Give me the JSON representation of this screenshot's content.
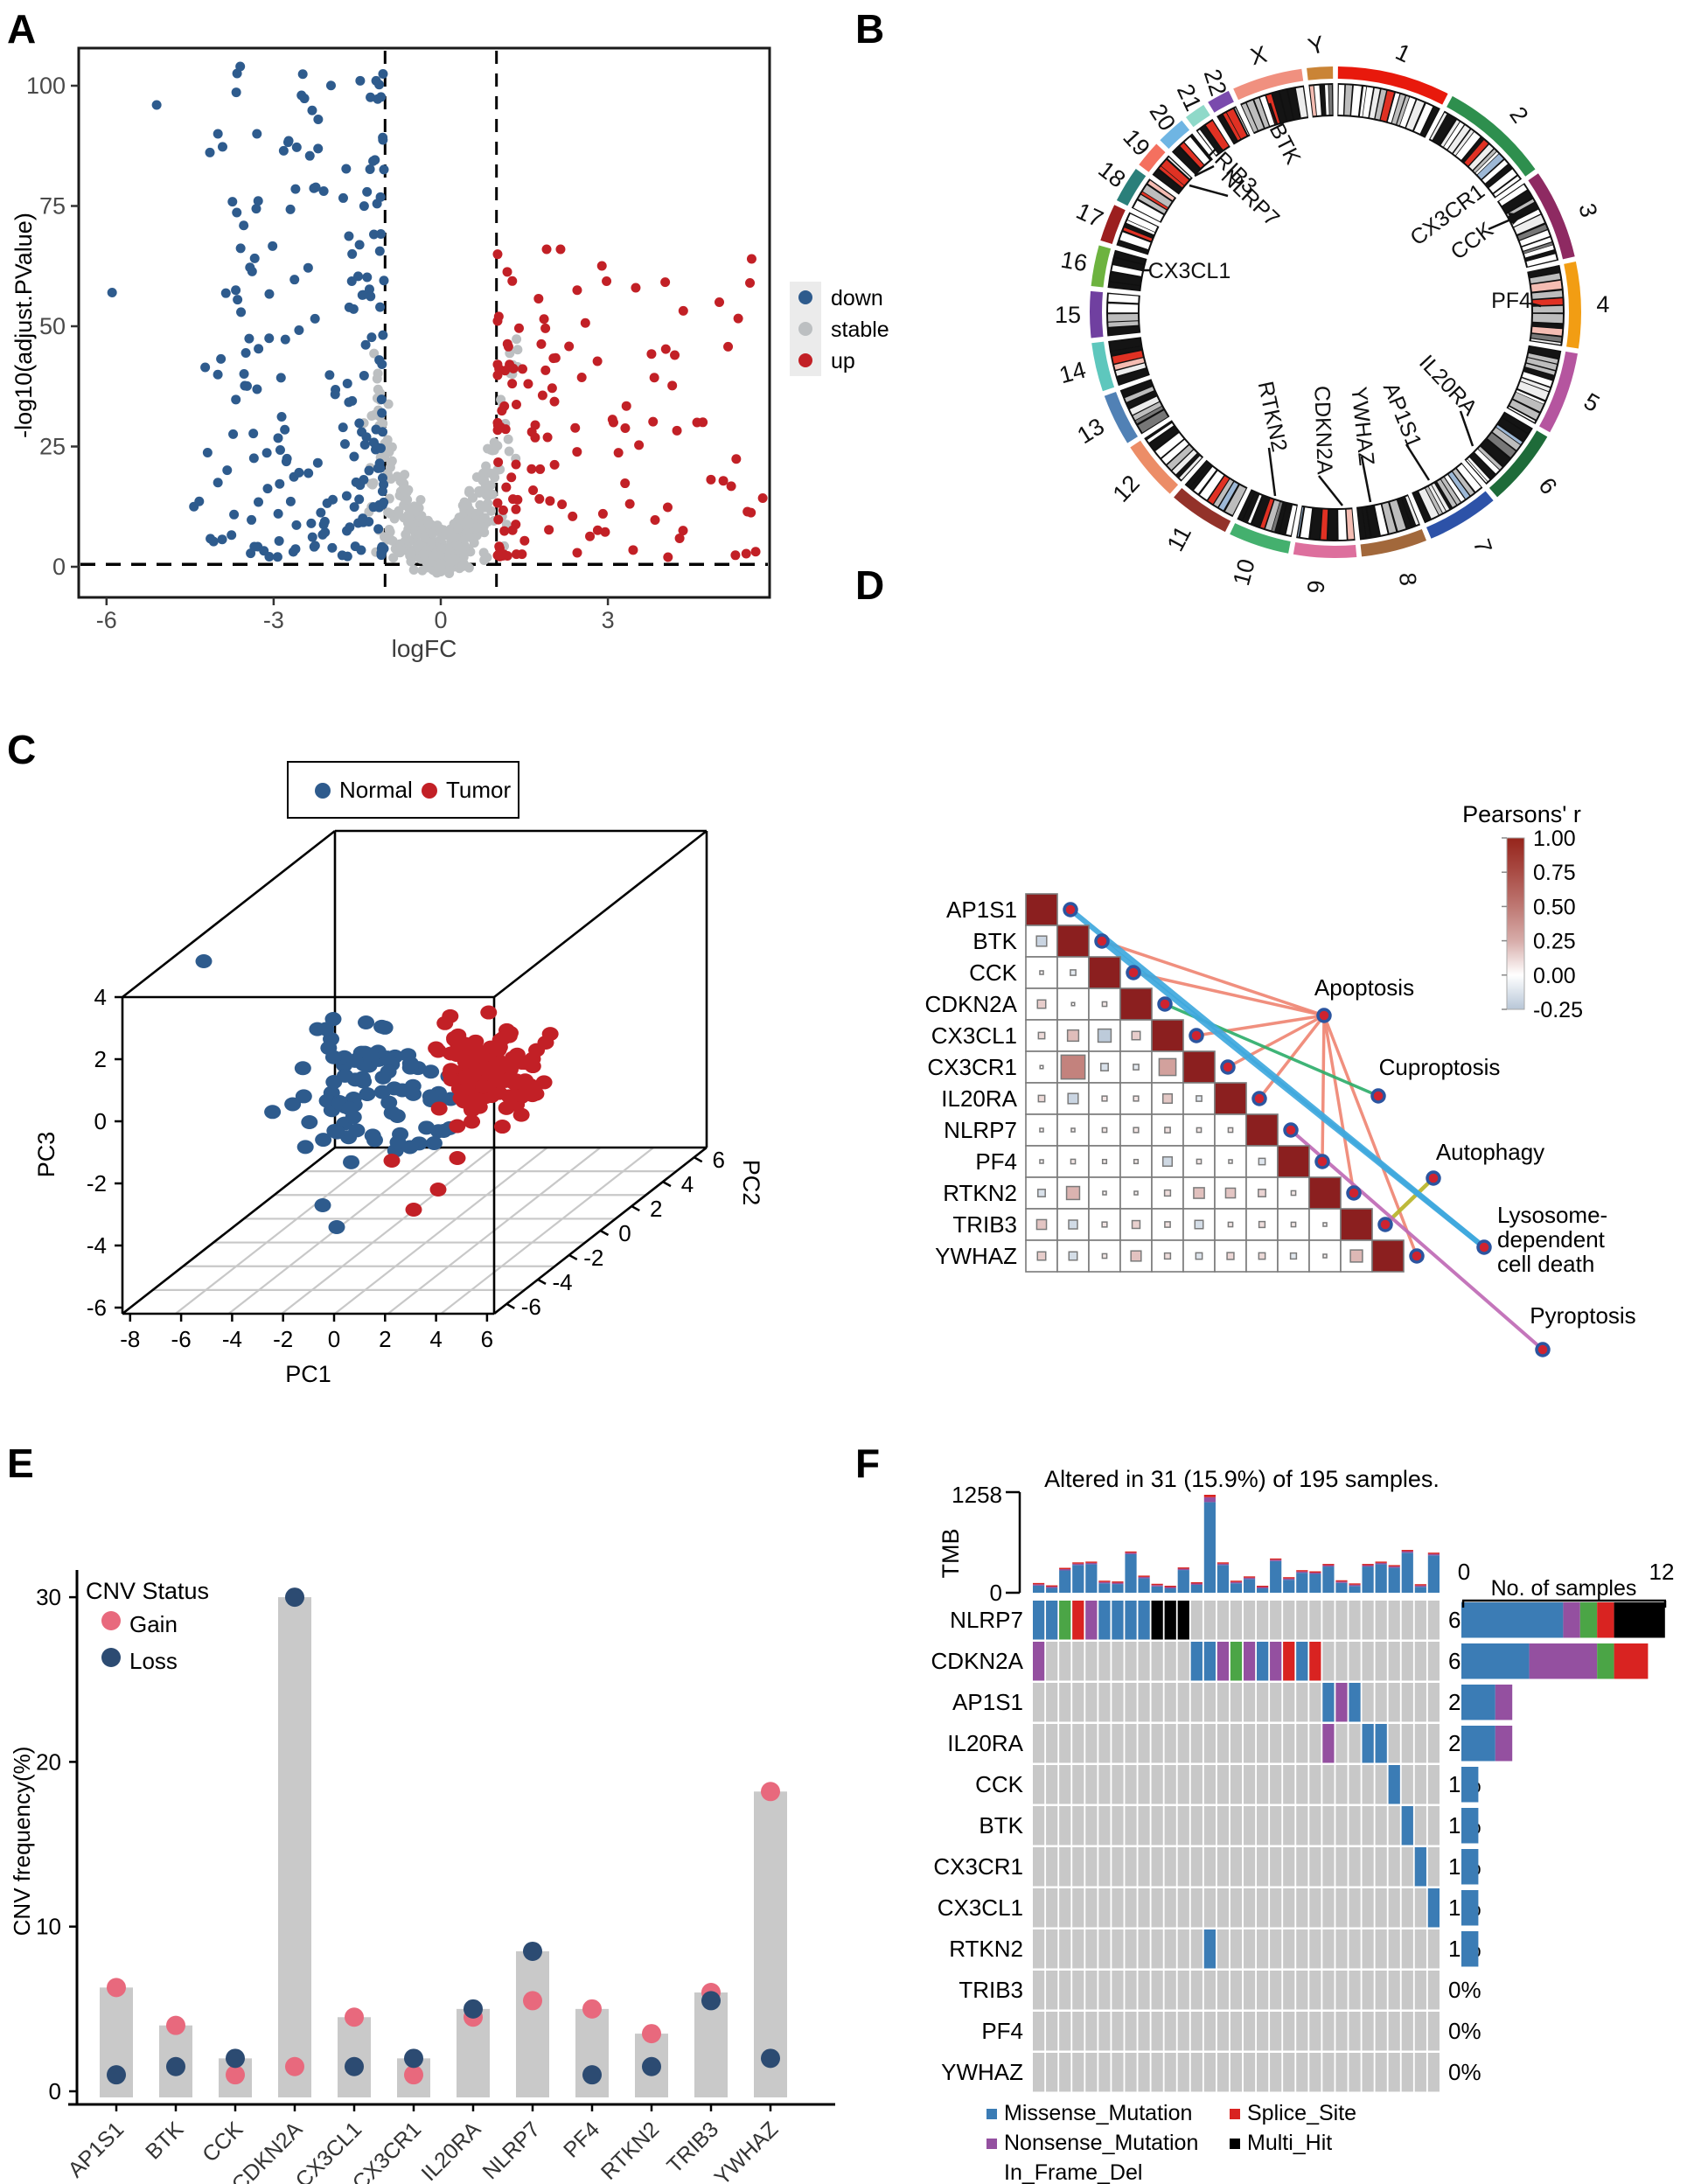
{
  "labels": {
    "panel_a": "A",
    "panel_b": "B",
    "panel_c": "C",
    "panel_d": "D",
    "panel_e": "E",
    "panel_f": "F",
    "lysosome_line1": "Lysosome-dependent",
    "lysosome_line2": "cell death"
  },
  "chart_data": {
    "volcano": {
      "type": "scatter",
      "xlabel": "logFC",
      "ylabel": "-log10(adjust.PValue)",
      "xticks": [
        -6,
        -3,
        0,
        3
      ],
      "yticks": [
        0,
        25,
        50,
        75,
        100
      ],
      "xlim": [
        -6.5,
        5.9
      ],
      "ylim": [
        -3,
        107
      ],
      "threshold_x": [
        -1,
        1
      ],
      "threshold_y": 0.5,
      "legend": [
        {
          "label": "down",
          "color": "#2e5b8d"
        },
        {
          "label": "stable",
          "color": "#bcbfc1"
        },
        {
          "label": "up",
          "color": "#c22026"
        }
      ],
      "counts": {
        "down": 205,
        "stable": 430,
        "up": 120
      },
      "outliers": {
        "down": [
          [
            -5.9,
            57
          ],
          [
            -5.1,
            96
          ],
          [
            -3.6,
            104
          ],
          [
            -4.0,
            90
          ],
          [
            -3.3,
            90
          ],
          [
            -2.5,
            98
          ],
          [
            -2.2,
            93
          ]
        ],
        "up": [
          [
            5.55,
            59
          ],
          [
            5.0,
            55
          ],
          [
            4.6,
            30
          ],
          [
            2.15,
            66
          ],
          [
            1.9,
            66
          ],
          [
            3.5,
            58
          ],
          [
            4.2,
            44
          ],
          [
            3.1,
            30
          ]
        ]
      },
      "seed": 42
    },
    "circos": {
      "type": "ideogram",
      "chromosomes": [
        {
          "name": "1",
          "color": "#e8190c",
          "size_mb": 248
        },
        {
          "name": "2",
          "color": "#2e8f4e",
          "size_mb": 242
        },
        {
          "name": "3",
          "color": "#8e2a62",
          "size_mb": 198
        },
        {
          "name": "4",
          "color": "#f29d13",
          "size_mb": 190
        },
        {
          "name": "5",
          "color": "#b5559f",
          "size_mb": 182
        },
        {
          "name": "6",
          "color": "#1e6b39",
          "size_mb": 171
        },
        {
          "name": "7",
          "color": "#2d52a8",
          "size_mb": 159
        },
        {
          "name": "8",
          "color": "#a2683b",
          "size_mb": 145
        },
        {
          "name": "9",
          "color": "#dd6f9d",
          "size_mb": 138
        },
        {
          "name": "10",
          "color": "#44b06e",
          "size_mb": 134
        },
        {
          "name": "11",
          "color": "#93322a",
          "size_mb": 135
        },
        {
          "name": "12",
          "color": "#ec8d67",
          "size_mb": 133
        },
        {
          "name": "13",
          "color": "#5181b5",
          "size_mb": 114
        },
        {
          "name": "14",
          "color": "#5ec7bd",
          "size_mb": 107
        },
        {
          "name": "15",
          "color": "#7040a0",
          "size_mb": 102
        },
        {
          "name": "16",
          "color": "#6db33f",
          "size_mb": 90
        },
        {
          "name": "17",
          "color": "#9c1f1f",
          "size_mb": 83
        },
        {
          "name": "18",
          "color": "#2a7f7a",
          "size_mb": 80
        },
        {
          "name": "19",
          "color": "#f4705f",
          "size_mb": 59
        },
        {
          "name": "20",
          "color": "#6fb5e3",
          "size_mb": 64
        },
        {
          "name": "21",
          "color": "#8fd9c9",
          "size_mb": 47
        },
        {
          "name": "22",
          "color": "#7a4bad",
          "size_mb": 51
        },
        {
          "name": "X",
          "color": "#f0907f",
          "size_mb": 155
        },
        {
          "name": "Y",
          "color": "#ca8436",
          "size_mb": 57
        }
      ],
      "genes": [
        {
          "name": "BTK",
          "chr": "X",
          "pos_mb": 77
        },
        {
          "name": "TRIB3",
          "chr": "20",
          "pos_mb": 0.6
        },
        {
          "name": "NLRP7",
          "chr": "19",
          "pos_mb": 54
        },
        {
          "name": "CX3CL1",
          "chr": "16",
          "pos_mb": 57
        },
        {
          "name": "CX3CR1",
          "chr": "3",
          "pos_mb": 39.3
        },
        {
          "name": "CCK",
          "chr": "3",
          "pos_mb": 42
        },
        {
          "name": "PF4",
          "chr": "4",
          "pos_mb": 75
        },
        {
          "name": "IL20RA",
          "chr": "6",
          "pos_mb": 137
        },
        {
          "name": "AP1S1",
          "chr": "7",
          "pos_mb": 100.5
        },
        {
          "name": "YWHAZ",
          "chr": "8",
          "pos_mb": 102
        },
        {
          "name": "CDKN2A",
          "chr": "9",
          "pos_mb": 22
        },
        {
          "name": "RTKN2",
          "chr": "10",
          "pos_mb": 62
        }
      ]
    },
    "pca": {
      "type": "scatter3d",
      "xlabel": "PC1",
      "ylabel": "PC2",
      "zlabel": "PC3",
      "xticks": [
        -8,
        -6,
        -4,
        -2,
        0,
        2,
        4,
        6
      ],
      "yticks": [
        6,
        4,
        2,
        0,
        -2,
        -4,
        -6
      ],
      "zticks": [
        4,
        2,
        0,
        -2,
        -4,
        -6
      ],
      "legend": [
        {
          "label": "Normal",
          "color": "#2e5b8d"
        },
        {
          "label": "Tumor",
          "color": "#c22026"
        }
      ],
      "groups": {
        "normal_n": 88,
        "tumor_n": 118
      },
      "seed": 7
    },
    "correlation": {
      "type": "heatmap",
      "legend_title": "Pearsons' r",
      "legend_ticks": [
        "1.00",
        "0.75",
        "0.50",
        "0.25",
        "0.00",
        "-0.25"
      ],
      "genes": [
        "AP1S1",
        "BTK",
        "CCK",
        "CDKN2A",
        "CX3CL1",
        "CX3CR1",
        "IL20RA",
        "NLRP7",
        "PF4",
        "RTKN2",
        "TRIB3",
        "YWHAZ"
      ],
      "matrix_lower": [
        [
          -0.16
        ],
        [
          0.02,
          -0.06
        ],
        [
          0.12,
          0.01,
          0.04
        ],
        [
          0.08,
          0.18,
          -0.22,
          0.12
        ],
        [
          0.01,
          0.45,
          -0.1,
          -0.06,
          0.3
        ],
        [
          0.08,
          -0.16,
          0.05,
          0.05,
          0.14,
          -0.06
        ],
        [
          0.02,
          0.02,
          0.04,
          0.05,
          0.06,
          0.04,
          0.04
        ],
        [
          0.02,
          0.04,
          0.03,
          0.03,
          -0.14,
          0.04,
          0.02,
          -0.08
        ],
        [
          -0.1,
          0.22,
          0.02,
          0.02,
          0.07,
          0.17,
          0.15,
          0.1,
          0.04
        ],
        [
          0.15,
          -0.13,
          0.05,
          0.11,
          0.06,
          -0.12,
          0.04,
          0.07,
          0.04,
          0.02
        ],
        [
          0.12,
          -0.12,
          0.04,
          0.16,
          0.07,
          -0.08,
          0.09,
          0.08,
          -0.07,
          0.02,
          0.2
        ]
      ],
      "pathways": [
        {
          "name": "Apoptosis",
          "color": "#ef8673",
          "genes": [
            "BTK",
            "CCK",
            "CX3CL1",
            "CX3CR1",
            "IL20RA",
            "PF4",
            "RTKN2",
            "YWHAZ"
          ]
        },
        {
          "name": "Cuproptosis",
          "color": "#2fae6b",
          "genes": [
            "CDKN2A"
          ]
        },
        {
          "name": "Autophagy",
          "color": "#b8b429",
          "genes": [
            "TRIB3"
          ]
        },
        {
          "name": "Lysosome-dependent cell death",
          "color": "#3fa8dd",
          "genes": [
            "AP1S1",
            "BTK"
          ]
        },
        {
          "name": "Pyroptosis",
          "color": "#bf6ab5",
          "genes": [
            "NLRP7"
          ]
        }
      ]
    },
    "cnv": {
      "type": "bar",
      "ylabel": "CNV frequency(%)",
      "yticks": [
        0,
        10,
        20,
        30
      ],
      "legend_title": "CNV Status",
      "series": [
        {
          "name": "Gain",
          "color": "#e8697d"
        },
        {
          "name": "Loss",
          "color": "#2c4b72"
        }
      ],
      "categories": [
        "AP1S1",
        "BTK",
        "CCK",
        "CDKN2A",
        "CX3CL1",
        "CX3CR1",
        "IL20RA",
        "NLRP7",
        "PF4",
        "RTKN2",
        "TRIB3",
        "YWHAZ"
      ],
      "gain": [
        6.3,
        4.0,
        1.0,
        1.5,
        4.5,
        1.0,
        4.5,
        5.5,
        5.0,
        3.5,
        6.0,
        18.2
      ],
      "loss": [
        1.0,
        1.5,
        2.0,
        30.0,
        1.5,
        2.0,
        5.0,
        8.5,
        1.0,
        1.5,
        5.5,
        2.0
      ],
      "bar": [
        6.3,
        4.0,
        2.0,
        30.0,
        4.5,
        2.0,
        5.0,
        8.5,
        5.0,
        3.5,
        6.0,
        18.2
      ],
      "bar_color": "#c9c9c9"
    },
    "oncoplot": {
      "type": "oncoplot",
      "title": "Altered in 31 (15.9%) of 195 samples.",
      "tmb_label": "TMB",
      "tmb_max": 1258,
      "tmb_axis": [
        "1258",
        "0"
      ],
      "samples_label": "No. of samples",
      "samples_axis": [
        "0",
        "12"
      ],
      "n_samples_shown": 31,
      "bg": "#c8c8c8",
      "genes": [
        "NLRP7",
        "CDKN2A",
        "AP1S1",
        "IL20RA",
        "CCK",
        "BTK",
        "CX3CR1",
        "CX3CL1",
        "RTKN2",
        "TRIB3",
        "PF4",
        "YWHAZ"
      ],
      "percents": [
        "6%",
        "6%",
        "2%",
        "2%",
        "1%",
        "1%",
        "1%",
        "1%",
        "1%",
        "0%",
        "0%",
        "0%"
      ],
      "tmb": [
        125,
        95,
        320,
        390,
        400,
        155,
        145,
        530,
        220,
        115,
        90,
        325,
        135,
        1258,
        390,
        155,
        210,
        90,
        440,
        200,
        290,
        275,
        370,
        160,
        120,
        370,
        400,
        355,
        550,
        110,
        515
      ],
      "mutations": {
        "NLRP7": [
          [
            1,
            "M"
          ],
          [
            2,
            "M"
          ],
          [
            3,
            "G"
          ],
          [
            4,
            "S"
          ],
          [
            5,
            "N"
          ],
          [
            6,
            "M"
          ],
          [
            7,
            "M"
          ],
          [
            8,
            "M"
          ],
          [
            9,
            "M"
          ],
          [
            10,
            "H"
          ],
          [
            11,
            "H"
          ],
          [
            12,
            "H"
          ]
        ],
        "CDKN2A": [
          [
            1,
            "N"
          ],
          [
            13,
            "M"
          ],
          [
            14,
            "M"
          ],
          [
            15,
            "N"
          ],
          [
            16,
            "G"
          ],
          [
            17,
            "N"
          ],
          [
            18,
            "M"
          ],
          [
            19,
            "N"
          ],
          [
            20,
            "S"
          ],
          [
            21,
            "M"
          ],
          [
            22,
            "S"
          ]
        ],
        "AP1S1": [
          [
            23,
            "M"
          ],
          [
            24,
            "N"
          ],
          [
            25,
            "M"
          ]
        ],
        "IL20RA": [
          [
            23,
            "N"
          ],
          [
            26,
            "M"
          ],
          [
            27,
            "M"
          ]
        ],
        "CCK": [
          [
            28,
            "M"
          ]
        ],
        "BTK": [
          [
            29,
            "M"
          ]
        ],
        "CX3CR1": [
          [
            30,
            "M"
          ]
        ],
        "CX3CL1": [
          [
            31,
            "M"
          ]
        ],
        "RTKN2": [
          [
            14,
            "M"
          ]
        ],
        "TRIB3": [],
        "PF4": [],
        "YWHAZ": []
      },
      "right_counts": {
        "NLRP7": {
          "M": 6,
          "N": 1,
          "G": 1,
          "S": 1,
          "H": 3
        },
        "CDKN2A": {
          "M": 4,
          "N": 4,
          "G": 1,
          "S": 2
        },
        "AP1S1": {
          "M": 2,
          "N": 1
        },
        "IL20RA": {
          "M": 2,
          "N": 1
        },
        "CCK": {
          "M": 1
        },
        "BTK": {
          "M": 1
        },
        "CX3CR1": {
          "M": 1
        },
        "CX3CL1": {
          "M": 1
        },
        "RTKN2": {
          "M": 1
        },
        "TRIB3": {},
        "PF4": {},
        "YWHAZ": {}
      },
      "types": {
        "M": {
          "label": "Missense_Mutation",
          "color": "#3b7cb5"
        },
        "N": {
          "label": "Nonsense_Mutation",
          "color": "#9450a0"
        },
        "G": {
          "label": "In_Frame_Del",
          "color": "#4ba546"
        },
        "S": {
          "label": "Splice_Site",
          "color": "#d92321"
        },
        "H": {
          "label": "Multi_Hit",
          "color": "#000000"
        }
      },
      "legend": [
        {
          "label": "Missense_Mutation",
          "color": "#3b7cb5"
        },
        {
          "label": "Nonsense_Mutation",
          "color": "#9450a0"
        },
        {
          "label": "In_Frame_Del",
          "color": "#4ba546"
        },
        {
          "label": "Splice_Site",
          "color": "#d92321"
        },
        {
          "label": "Multi_Hit",
          "color": "#000000"
        }
      ]
    }
  }
}
